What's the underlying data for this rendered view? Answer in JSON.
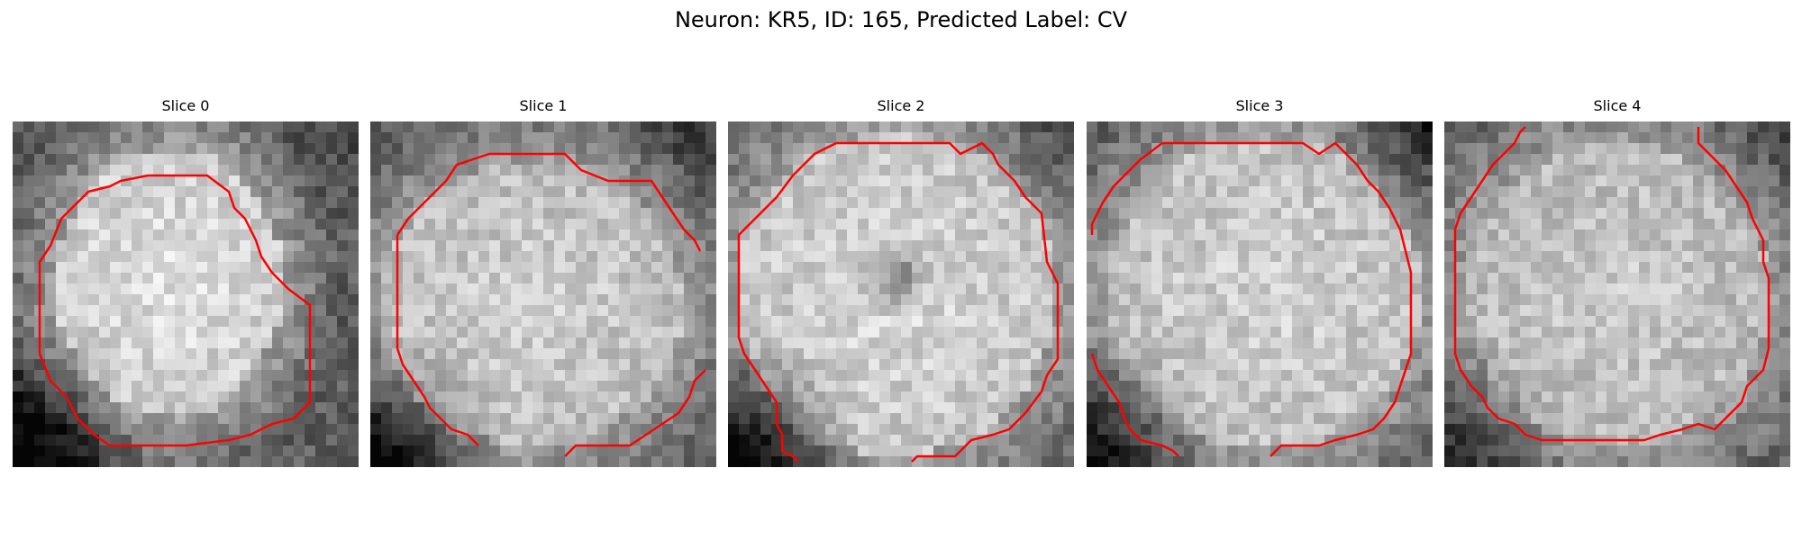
{
  "figure": {
    "suptitle": "Neuron: KR5, ID: 165, Predicted Label: CV",
    "contour_color": "#ff0000",
    "panels": [
      {
        "title": "Slice 0",
        "index": 0
      },
      {
        "title": "Slice 1",
        "index": 1
      },
      {
        "title": "Slice 2",
        "index": 2
      },
      {
        "title": "Slice 3",
        "index": 3
      },
      {
        "title": "Slice 4",
        "index": 4
      }
    ]
  }
}
